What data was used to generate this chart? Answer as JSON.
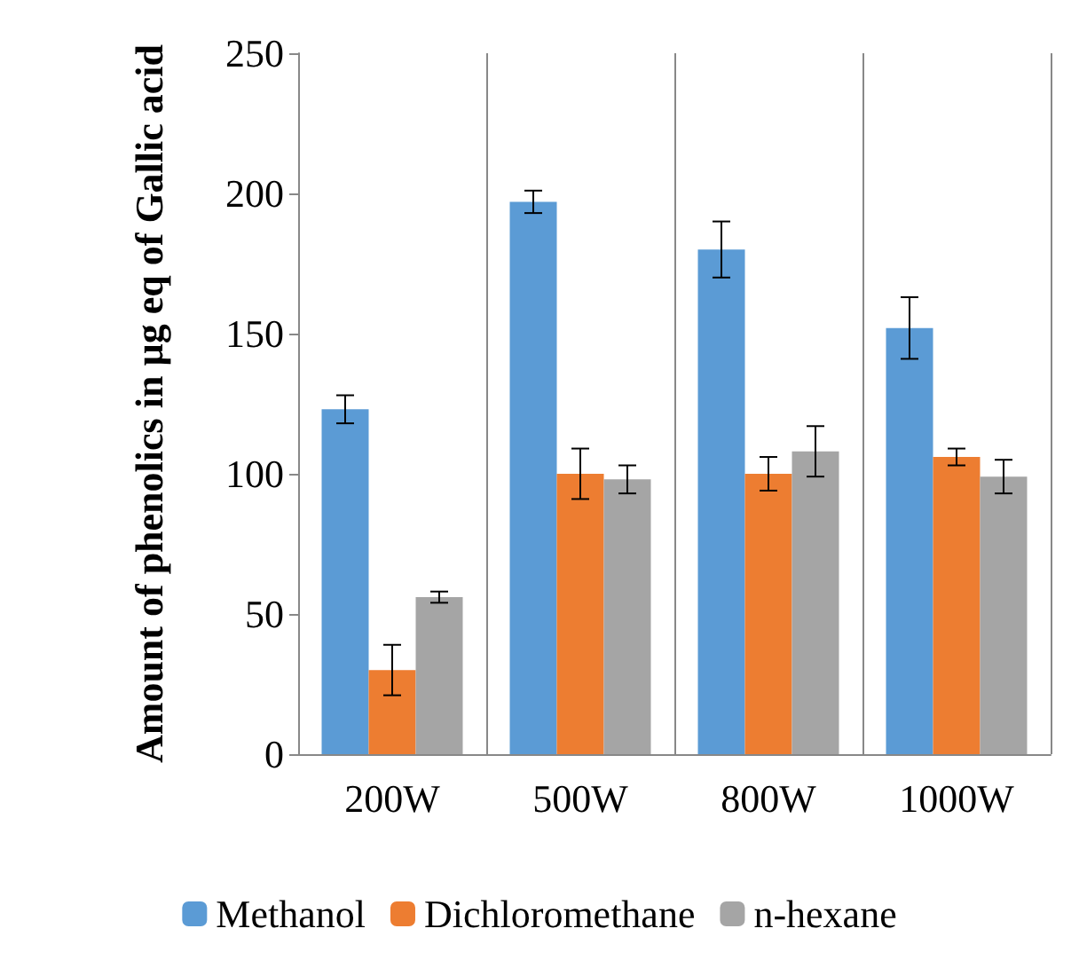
{
  "chart_data": {
    "type": "bar",
    "ylabel": "Amount of phenolics in µg eq of Gallic acid",
    "categories": [
      "200W",
      "500W",
      "800W",
      "1000W"
    ],
    "series": [
      {
        "name": "Methanol",
        "color": "#5b9bd5",
        "values": [
          123,
          197,
          180,
          152
        ],
        "errors": [
          5,
          4,
          10,
          11
        ]
      },
      {
        "name": "Dichloromethane",
        "color": "#ed7d31",
        "values": [
          30,
          100,
          100,
          106
        ],
        "errors": [
          9,
          9,
          6,
          3
        ]
      },
      {
        "name": "n-hexane",
        "color": "#a5a5a5",
        "values": [
          56,
          98,
          108,
          99
        ],
        "errors": [
          2,
          5,
          9,
          6
        ]
      }
    ],
    "ylim": [
      0,
      250
    ],
    "yticks": [
      0,
      50,
      100,
      150,
      200,
      250
    ],
    "grid": "x",
    "legend": "bottom"
  }
}
